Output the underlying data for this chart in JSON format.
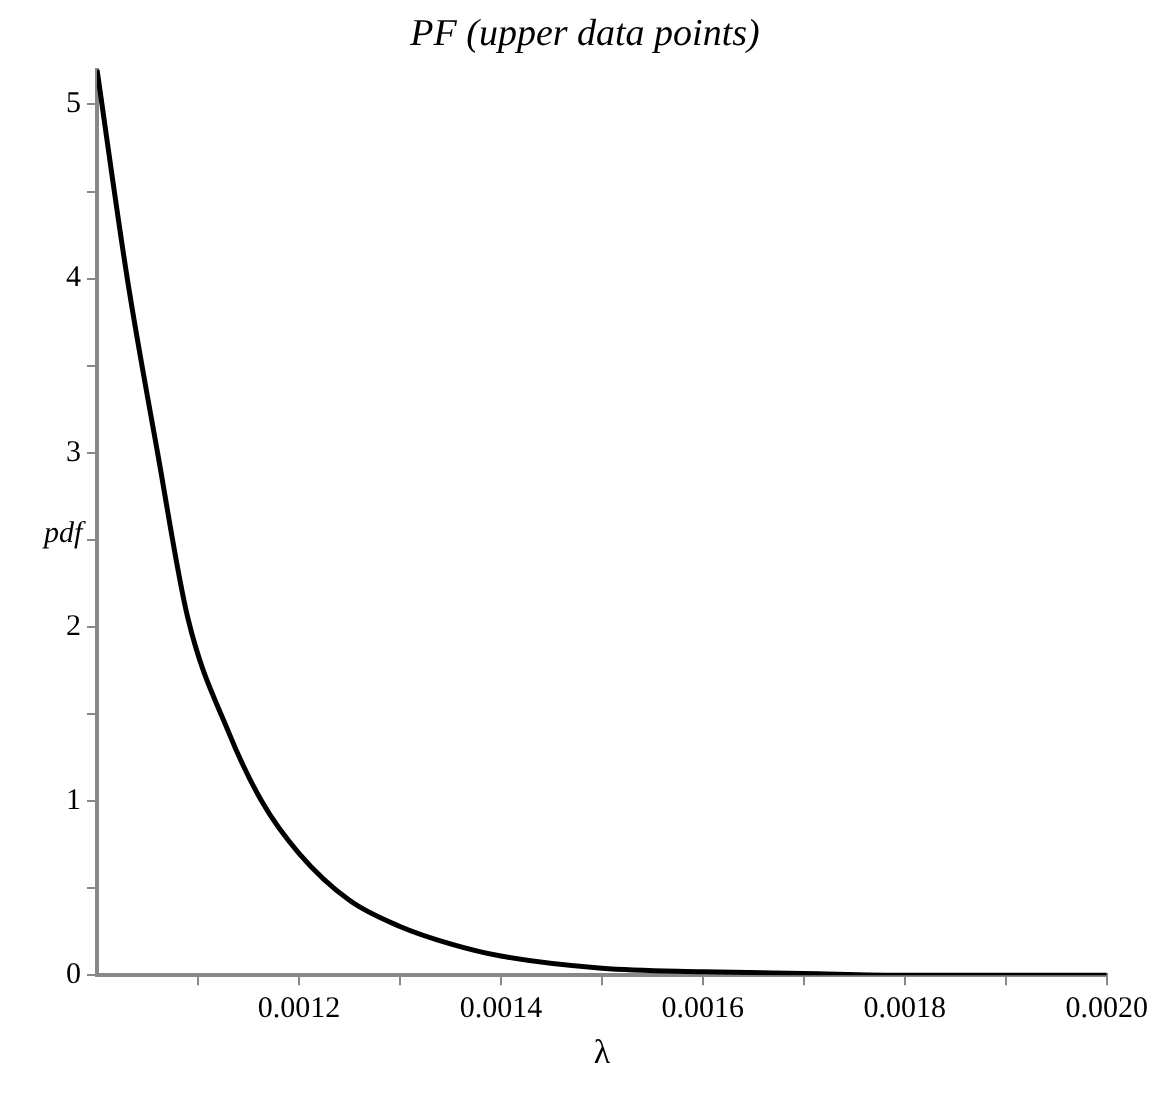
{
  "chart_data": {
    "type": "line",
    "title": "PF (upper data points)",
    "xlabel": "λ",
    "ylabel": "pdf",
    "x": [
      0.001,
      0.00103,
      0.00106,
      0.00109,
      0.00113,
      0.001163,
      0.0012,
      0.00125,
      0.0013,
      0.00135,
      0.0014,
      0.0015,
      0.0016,
      0.0017,
      0.0018,
      0.0019,
      0.002
    ],
    "series": [
      {
        "color": "#000000",
        "values": [
          5.2,
          4.0,
          3.0,
          2.05,
          1.4,
          1.0,
          0.7,
          0.43,
          0.28,
          0.18,
          0.11,
          0.04,
          0.02,
          0.01,
          0,
          0,
          0
        ]
      }
    ],
    "xlim": [
      0.001,
      0.002
    ],
    "xticks": [
      {
        "value": 0.0011,
        "label": null
      },
      0.0012,
      {
        "value": 0.0013,
        "label": null
      },
      0.0014,
      {
        "value": 0.0015,
        "label": null
      },
      0.0016,
      {
        "value": 0.0017,
        "label": null
      },
      0.0018,
      {
        "value": 0.0019,
        "label": null
      },
      {
        "value": 0.002,
        "label": "0.0020"
      }
    ],
    "ylim": [
      0,
      5.2
    ],
    "yticks": [
      0,
      {
        "value": 0.5,
        "label": null
      },
      1,
      {
        "value": 1.5,
        "label": null
      },
      2,
      {
        "value": 2.5,
        "label": null
      },
      3,
      {
        "value": 3.5,
        "label": null
      },
      4,
      {
        "value": 4.5,
        "label": null
      },
      5
    ],
    "grid": false,
    "legend": false,
    "marker": "none",
    "line_style": "solid"
  }
}
